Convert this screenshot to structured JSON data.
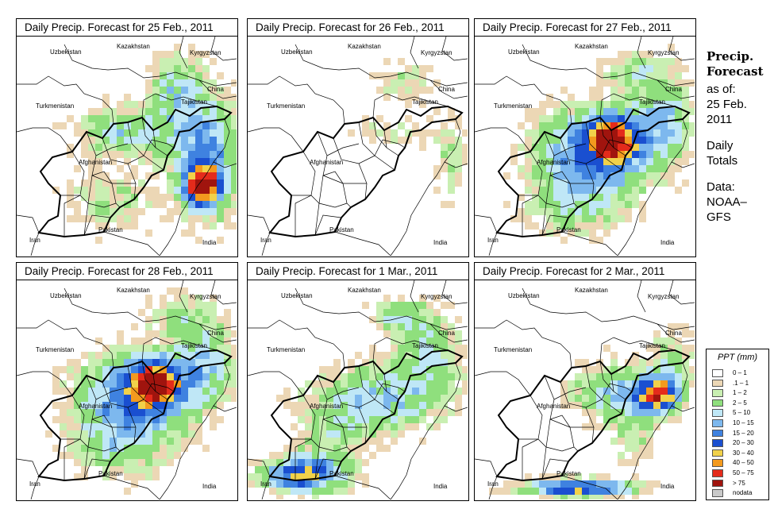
{
  "panels": [
    {
      "title": "Daily Precip. Forecast for  25 Feb., 2011",
      "scenario": "wet_east"
    },
    {
      "title": "Daily Precip. Forecast for  26 Feb., 2011",
      "scenario": "light"
    },
    {
      "title": "Daily Precip. Forecast for  27 Feb., 2011",
      "scenario": "widespread"
    },
    {
      "title": "Daily Precip. Forecast for  28 Feb., 2011",
      "scenario": "widespread"
    },
    {
      "title": "Daily Precip. Forecast for  1 Mar., 2011",
      "scenario": "southwest"
    },
    {
      "title": "Daily Precip. Forecast for  2 Mar., 2011",
      "scenario": "southeast"
    }
  ],
  "map_labels": {
    "uzbekistan": "Uzbekistan",
    "kazakhstan": "Kazakhstan",
    "kyrgyzstan": "Kyrgyzstan",
    "china": "China",
    "turkmenistan": "Turkmenistan",
    "tajikistan": "Tajikistan",
    "afghanistan": "Afghanistan",
    "iran": "Iran",
    "pakistan": "Pakistan",
    "india": "India"
  },
  "sidebar": {
    "title_line1": "Precip.",
    "title_line2": "Forecast",
    "asof_line1": "as of:",
    "asof_line2": "25 Feb.",
    "asof_line3": "2011",
    "totals_line1": "Daily",
    "totals_line2": "Totals",
    "source_line1": "Data:",
    "source_line2": "NOAA–",
    "source_line3": "GFS"
  },
  "legend": {
    "title": "PPT (mm)",
    "items": [
      {
        "label": "0 – 1",
        "color": "#ffffff"
      },
      {
        "label": ".1 – 1",
        "color": "#ecd7b5"
      },
      {
        "label": "1 – 2",
        "color": "#c9efb2"
      },
      {
        "label": "2 – 5",
        "color": "#8fdf7d"
      },
      {
        "label": "5 – 10",
        "color": "#bfe7f6"
      },
      {
        "label": "10 – 15",
        "color": "#7db8ee"
      },
      {
        "label": "15 – 20",
        "color": "#3f82e0"
      },
      {
        "label": "20 – 30",
        "color": "#1a4fd0"
      },
      {
        "label": "30 – 40",
        "color": "#f1d14a"
      },
      {
        "label": "40 – 50",
        "color": "#f39a1e"
      },
      {
        "label": "50 – 75",
        "color": "#e42b1b"
      },
      {
        "label": "> 75",
        "color": "#a0140e"
      },
      {
        "label": "nodata",
        "color": "#c9c9c9"
      }
    ]
  }
}
